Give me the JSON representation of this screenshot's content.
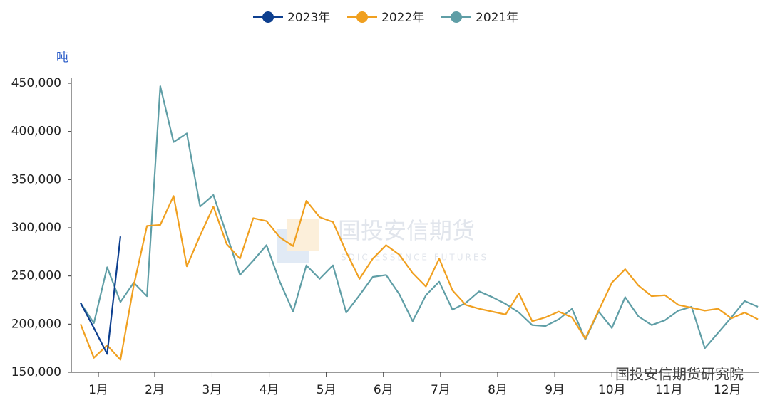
{
  "chart_data": {
    "type": "line",
    "y_axis_label": "吨",
    "x": [
      1,
      2,
      3,
      4,
      5,
      6,
      7,
      8,
      9,
      10,
      11,
      12,
      13,
      14,
      15,
      16,
      17,
      18,
      19,
      20,
      21,
      22,
      23,
      24,
      25,
      26,
      27,
      28,
      29,
      30,
      31,
      32,
      33,
      34,
      35,
      36,
      37,
      38,
      39,
      40,
      41,
      42,
      43,
      44,
      45,
      46,
      47,
      48,
      49,
      50,
      51,
      52
    ],
    "xlim": [
      0.3,
      52.1
    ],
    "xticks": [
      {
        "value": 2.34,
        "label": "1月"
      },
      {
        "value": 6.58,
        "label": "2月"
      },
      {
        "value": 10.9,
        "label": "3月"
      },
      {
        "value": 15.2,
        "label": "4月"
      },
      {
        "value": 19.5,
        "label": "5月"
      },
      {
        "value": 23.8,
        "label": "6月"
      },
      {
        "value": 28.1,
        "label": "7月"
      },
      {
        "value": 32.4,
        "label": "8月"
      },
      {
        "value": 36.7,
        "label": "9月"
      },
      {
        "value": 41.0,
        "label": "10月"
      },
      {
        "value": 45.3,
        "label": "11月"
      },
      {
        "value": 49.7,
        "label": "12月"
      }
    ],
    "ylim": [
      150000,
      450000
    ],
    "yticks": [
      {
        "value": 150000,
        "label": "150,000"
      },
      {
        "value": 200000,
        "label": "200,000"
      },
      {
        "value": 250000,
        "label": "250,000"
      },
      {
        "value": 300000,
        "label": "300,000"
      },
      {
        "value": 350000,
        "label": "350,000"
      },
      {
        "value": 400000,
        "label": "400,000"
      },
      {
        "value": 450000,
        "label": "450,000"
      }
    ],
    "legend": "top",
    "series": [
      {
        "name": "2023年",
        "color": "#0d3f8f",
        "values": [
          222000,
          196000,
          169000,
          291000,
          null,
          null,
          null,
          null,
          null,
          null,
          null,
          null,
          null,
          null,
          null,
          null,
          null,
          null,
          null,
          null,
          null,
          null,
          null,
          null,
          null,
          null,
          null,
          null,
          null,
          null,
          null,
          null,
          null,
          null,
          null,
          null,
          null,
          null,
          null,
          null,
          null,
          null,
          null,
          null,
          null,
          null,
          null,
          null,
          null,
          null,
          null,
          null
        ]
      },
      {
        "name": "2022年",
        "color": "#f0a020",
        "values": [
          200000,
          165000,
          178000,
          163000,
          240000,
          302000,
          303000,
          333000,
          260000,
          292000,
          322000,
          283000,
          268000,
          310000,
          307000,
          290000,
          281000,
          328000,
          311000,
          306000,
          275000,
          247000,
          268000,
          282000,
          272000,
          253000,
          239000,
          268000,
          235000,
          220000,
          216000,
          213000,
          210000,
          232000,
          203000,
          207000,
          213000,
          207000,
          185000,
          214000,
          243000,
          257000,
          240000,
          229000,
          230000,
          220000,
          217000,
          214000,
          216000,
          206000,
          212000,
          205000
        ]
      },
      {
        "name": "2021年",
        "color": "#5f9ea6",
        "values": [
          222000,
          201000,
          259000,
          223000,
          243000,
          229000,
          447000,
          389000,
          398000,
          322000,
          334000,
          293000,
          251000,
          266000,
          282000,
          244000,
          213000,
          261000,
          247000,
          261000,
          212000,
          230000,
          249000,
          251000,
          231000,
          203000,
          230000,
          244000,
          215000,
          222000,
          234000,
          228000,
          221000,
          212000,
          199000,
          198000,
          205000,
          216000,
          184000,
          213000,
          196000,
          228000,
          208000,
          199000,
          204000,
          214000,
          218000,
          175000,
          191000,
          207000,
          224000,
          218000
        ]
      }
    ]
  },
  "watermark": {
    "name": "国投安信期货",
    "subtitle": "SDIC ESSENCE FUTURES",
    "source": "国投安信期货研究院"
  }
}
